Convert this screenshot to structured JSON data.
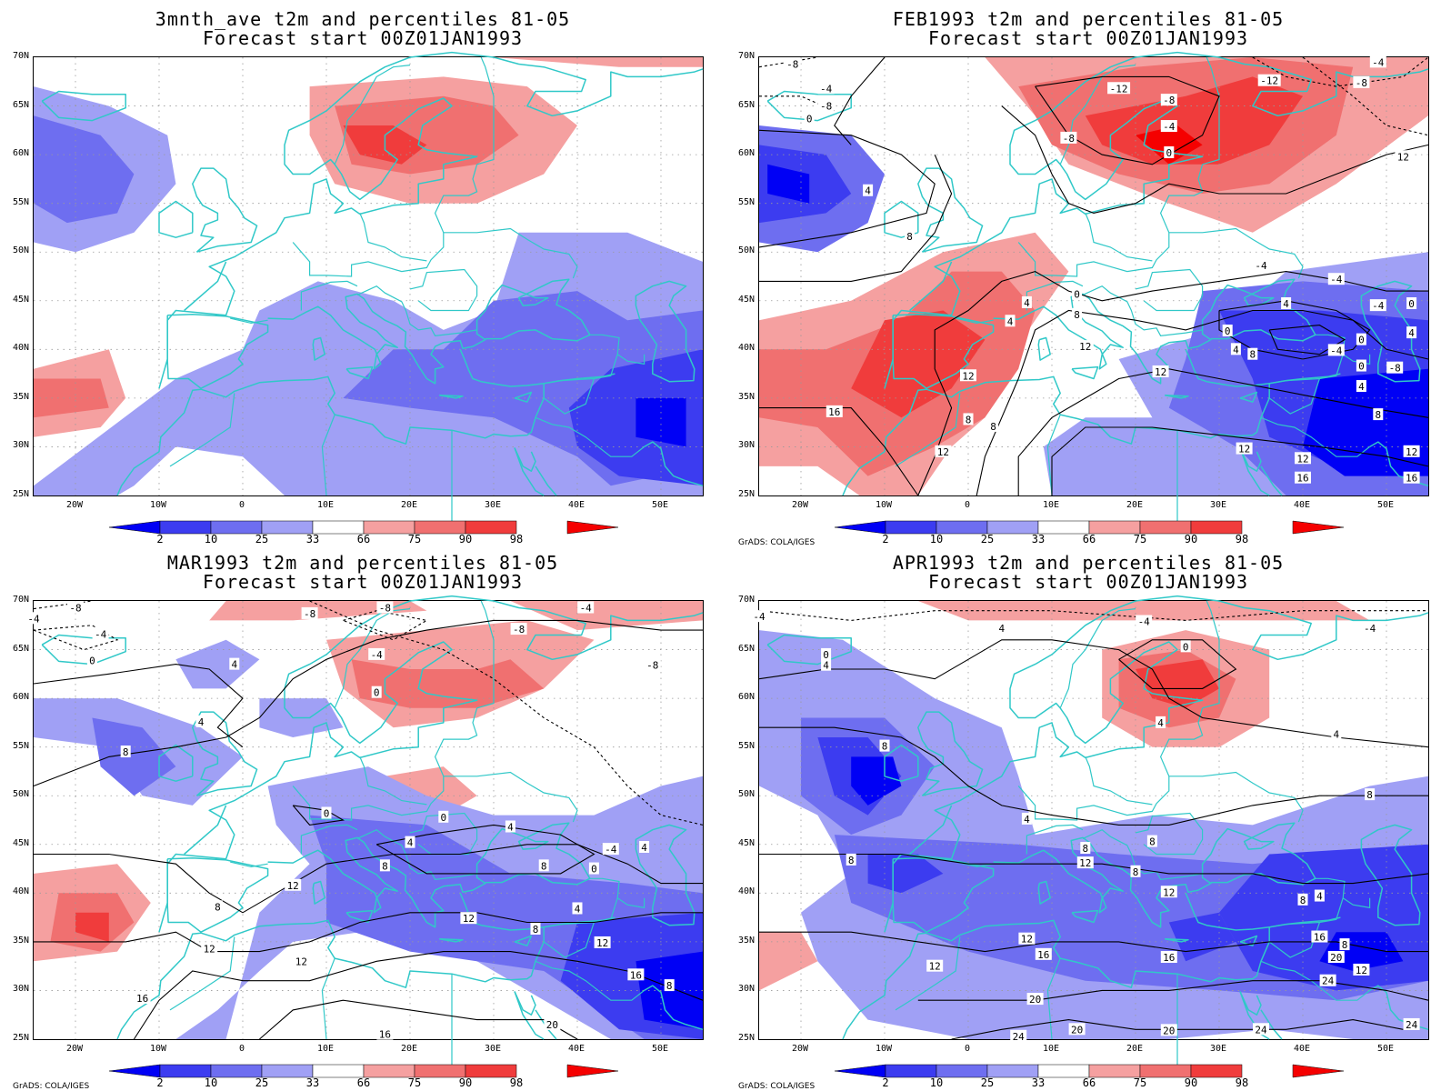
{
  "panels": [
    {
      "title_line1": "3mnth_ave t2m and percentiles 81-05",
      "title_line2": "Forecast start 00Z01JAN1993",
      "credit": "",
      "contour_labels": []
    },
    {
      "title_line1": "FEB1993 t2m and percentiles 81-05",
      "title_line2": "Forecast start 00Z01JAN1993",
      "credit": "GrADS: COLA/IGES",
      "contour_labels": [
        {
          "lon": -21,
          "lat": 69.3,
          "text": "-8"
        },
        {
          "lon": -17,
          "lat": 66.8,
          "text": "-4"
        },
        {
          "lon": -17,
          "lat": 65,
          "text": "-8"
        },
        {
          "lon": -19,
          "lat": 63.7,
          "text": "0"
        },
        {
          "lon": -12,
          "lat": 56.3,
          "text": "4"
        },
        {
          "lon": -7,
          "lat": 51.6,
          "text": "8"
        },
        {
          "lon": 12,
          "lat": 61.7,
          "text": "-8"
        },
        {
          "lon": 18,
          "lat": 66.8,
          "text": "-12"
        },
        {
          "lon": 24,
          "lat": 65.6,
          "text": "-8"
        },
        {
          "lon": 24,
          "lat": 62.9,
          "text": "-4"
        },
        {
          "lon": 24,
          "lat": 60.2,
          "text": "0"
        },
        {
          "lon": 36,
          "lat": 67.6,
          "text": "-12"
        },
        {
          "lon": 47,
          "lat": 67.4,
          "text": "-8"
        },
        {
          "lon": 49,
          "lat": 69.5,
          "text": "-4"
        },
        {
          "lon": 52,
          "lat": 59.8,
          "text": "12"
        },
        {
          "lon": 35,
          "lat": 48.6,
          "text": "-4"
        },
        {
          "lon": 13,
          "lat": 45.7,
          "text": "0"
        },
        {
          "lon": 7,
          "lat": 44.8,
          "text": "4"
        },
        {
          "lon": 5,
          "lat": 42.9,
          "text": "4"
        },
        {
          "lon": 13,
          "lat": 43.6,
          "text": "8"
        },
        {
          "lon": 14,
          "lat": 40.3,
          "text": "12"
        },
        {
          "lon": 23,
          "lat": 37.7,
          "text": "12"
        },
        {
          "lon": 31,
          "lat": 41.9,
          "text": "0"
        },
        {
          "lon": 32,
          "lat": 40.0,
          "text": "4"
        },
        {
          "lon": 34,
          "lat": 39.5,
          "text": "8"
        },
        {
          "lon": 38,
          "lat": 44.7,
          "text": "4"
        },
        {
          "lon": 44,
          "lat": 47.2,
          "text": "-4"
        },
        {
          "lon": 49,
          "lat": 44.5,
          "text": "-4"
        },
        {
          "lon": 53,
          "lat": 44.7,
          "text": "0"
        },
        {
          "lon": 53,
          "lat": 41.7,
          "text": "4"
        },
        {
          "lon": 44,
          "lat": 39.9,
          "text": "-4"
        },
        {
          "lon": 47,
          "lat": 41.0,
          "text": "0"
        },
        {
          "lon": 47,
          "lat": 38.3,
          "text": "0"
        },
        {
          "lon": 51,
          "lat": 38.1,
          "text": "-8"
        },
        {
          "lon": 47,
          "lat": 36.2,
          "text": "4"
        },
        {
          "lon": 49,
          "lat": 33.3,
          "text": "8"
        },
        {
          "lon": -16,
          "lat": 33.6,
          "text": "16"
        },
        {
          "lon": -3,
          "lat": 29.5,
          "text": "12"
        },
        {
          "lon": 0,
          "lat": 32.8,
          "text": "8"
        },
        {
          "lon": 3,
          "lat": 32.1,
          "text": "8"
        },
        {
          "lon": 0,
          "lat": 37.3,
          "text": "12"
        },
        {
          "lon": 33,
          "lat": 29.8,
          "text": "12"
        },
        {
          "lon": 40,
          "lat": 28.8,
          "text": "12"
        },
        {
          "lon": 40,
          "lat": 26.8,
          "text": "16"
        },
        {
          "lon": 53,
          "lat": 29.5,
          "text": "12"
        },
        {
          "lon": 53,
          "lat": 26.8,
          "text": "16"
        }
      ]
    },
    {
      "title_line1": "MAR1993 t2m and percentiles 81-05",
      "title_line2": "Forecast start 00Z01JAN1993",
      "credit": "GrADS: COLA/IGES",
      "contour_labels": [
        {
          "lon": -20,
          "lat": 69.3,
          "text": "-8"
        },
        {
          "lon": -25,
          "lat": 68.2,
          "text": "-4"
        },
        {
          "lon": -17,
          "lat": 66.6,
          "text": "-4"
        },
        {
          "lon": -18,
          "lat": 63.9,
          "text": "0"
        },
        {
          "lon": -14,
          "lat": 54.5,
          "text": "8"
        },
        {
          "lon": -1,
          "lat": 63.5,
          "text": "4"
        },
        {
          "lon": -5,
          "lat": 57.6,
          "text": "4"
        },
        {
          "lon": 8,
          "lat": 68.7,
          "text": "-8"
        },
        {
          "lon": 17,
          "lat": 69.3,
          "text": "-8"
        },
        {
          "lon": 16,
          "lat": 64.5,
          "text": "-4"
        },
        {
          "lon": 16,
          "lat": 60.6,
          "text": "0"
        },
        {
          "lon": 33,
          "lat": 67.1,
          "text": "-8"
        },
        {
          "lon": 41,
          "lat": 69.3,
          "text": "-4"
        },
        {
          "lon": 49,
          "lat": 63.4,
          "text": "-8"
        },
        {
          "lon": 10,
          "lat": 48.2,
          "text": "0"
        },
        {
          "lon": 24,
          "lat": 47.8,
          "text": "0"
        },
        {
          "lon": 32,
          "lat": 46.8,
          "text": "4"
        },
        {
          "lon": 20,
          "lat": 45.2,
          "text": "4"
        },
        {
          "lon": 17,
          "lat": 42.8,
          "text": "8"
        },
        {
          "lon": 36,
          "lat": 42.8,
          "text": "8"
        },
        {
          "lon": 42,
          "lat": 42.5,
          "text": "0"
        },
        {
          "lon": 44,
          "lat": 44.5,
          "text": "-4"
        },
        {
          "lon": 48,
          "lat": 44.7,
          "text": "4"
        },
        {
          "lon": 40,
          "lat": 38.4,
          "text": "4"
        },
        {
          "lon": 6,
          "lat": 40.8,
          "text": "12"
        },
        {
          "lon": -3,
          "lat": 38.6,
          "text": "8"
        },
        {
          "lon": 27,
          "lat": 37.4,
          "text": "12"
        },
        {
          "lon": 35,
          "lat": 36.3,
          "text": "8"
        },
        {
          "lon": -4,
          "lat": 34.3,
          "text": "12"
        },
        {
          "lon": 7,
          "lat": 33.0,
          "text": "12"
        },
        {
          "lon": 43,
          "lat": 34.9,
          "text": "12"
        },
        {
          "lon": 47,
          "lat": 31.6,
          "text": "16"
        },
        {
          "lon": 51,
          "lat": 30.5,
          "text": "8"
        },
        {
          "lon": -12,
          "lat": 29.2,
          "text": "16"
        },
        {
          "lon": 17,
          "lat": 25.5,
          "text": "16"
        },
        {
          "lon": 37,
          "lat": 26.5,
          "text": "20"
        }
      ]
    },
    {
      "title_line1": "APR1993 t2m and percentiles 81-05",
      "title_line2": "Forecast start 00Z01JAN1993",
      "credit": "GrADS: COLA/IGES",
      "contour_labels": [
        {
          "lon": -25,
          "lat": 68.4,
          "text": "-4"
        },
        {
          "lon": -17,
          "lat": 64.5,
          "text": "0"
        },
        {
          "lon": -17,
          "lat": 63.4,
          "text": "4"
        },
        {
          "lon": 4,
          "lat": 67.2,
          "text": "4"
        },
        {
          "lon": 21,
          "lat": 67.9,
          "text": "-4"
        },
        {
          "lon": 48,
          "lat": 67.2,
          "text": "-4"
        },
        {
          "lon": 26,
          "lat": 65.3,
          "text": "0"
        },
        {
          "lon": 23,
          "lat": 57.5,
          "text": "4"
        },
        {
          "lon": 44,
          "lat": 56.3,
          "text": "4"
        },
        {
          "lon": -10,
          "lat": 55.1,
          "text": "8"
        },
        {
          "lon": 48,
          "lat": 50.1,
          "text": "8"
        },
        {
          "lon": 7,
          "lat": 47.6,
          "text": "4"
        },
        {
          "lon": 14,
          "lat": 44.6,
          "text": "8"
        },
        {
          "lon": 14,
          "lat": 43.1,
          "text": "12"
        },
        {
          "lon": 22,
          "lat": 45.3,
          "text": "8"
        },
        {
          "lon": 20,
          "lat": 42.2,
          "text": "8"
        },
        {
          "lon": -14,
          "lat": 43.4,
          "text": "8"
        },
        {
          "lon": 24,
          "lat": 40.1,
          "text": "12"
        },
        {
          "lon": 40,
          "lat": 39.3,
          "text": "8"
        },
        {
          "lon": 42,
          "lat": 39.7,
          "text": "4"
        },
        {
          "lon": 7,
          "lat": 35.3,
          "text": "12"
        },
        {
          "lon": 9,
          "lat": 33.7,
          "text": "16"
        },
        {
          "lon": -4,
          "lat": 32.5,
          "text": "12"
        },
        {
          "lon": 24,
          "lat": 33.4,
          "text": "16"
        },
        {
          "lon": 42,
          "lat": 35.5,
          "text": "16"
        },
        {
          "lon": 45,
          "lat": 34.7,
          "text": "8"
        },
        {
          "lon": 44,
          "lat": 33.4,
          "text": "20"
        },
        {
          "lon": 47,
          "lat": 32.1,
          "text": "12"
        },
        {
          "lon": 43,
          "lat": 31.0,
          "text": "24"
        },
        {
          "lon": 8,
          "lat": 29.1,
          "text": "20"
        },
        {
          "lon": 13,
          "lat": 26.0,
          "text": "20"
        },
        {
          "lon": 6,
          "lat": 25.3,
          "text": "24"
        },
        {
          "lon": 24,
          "lat": 25.9,
          "text": "20"
        },
        {
          "lon": 35,
          "lat": 26.0,
          "text": "24"
        },
        {
          "lon": 53,
          "lat": 26.5,
          "text": "24"
        }
      ]
    }
  ],
  "map": {
    "lon_range": [
      -25,
      55
    ],
    "lat_range": [
      25,
      70
    ],
    "lat_ticks": [
      "70N",
      "65N",
      "60N",
      "55N",
      "50N",
      "45N",
      "40N",
      "35N",
      "30N",
      "25N"
    ],
    "lon_ticks": [
      "20W",
      "10W",
      "0",
      "10E",
      "20E",
      "30E",
      "40E",
      "50E"
    ]
  },
  "colorbar": {
    "labels": [
      "2",
      "10",
      "25",
      "33",
      "66",
      "75",
      "90",
      "98"
    ],
    "colors": [
      "#0000f5",
      "#3c3cf0",
      "#6e6ef0",
      "#a0a0f5",
      "#ffffff",
      "#f5a0a0",
      "#f07070",
      "#f03c3c",
      "#f50000"
    ]
  },
  "colors": {
    "coastline": "#30c8c8",
    "contour": "#000000",
    "grid": "#9a9a9a"
  }
}
